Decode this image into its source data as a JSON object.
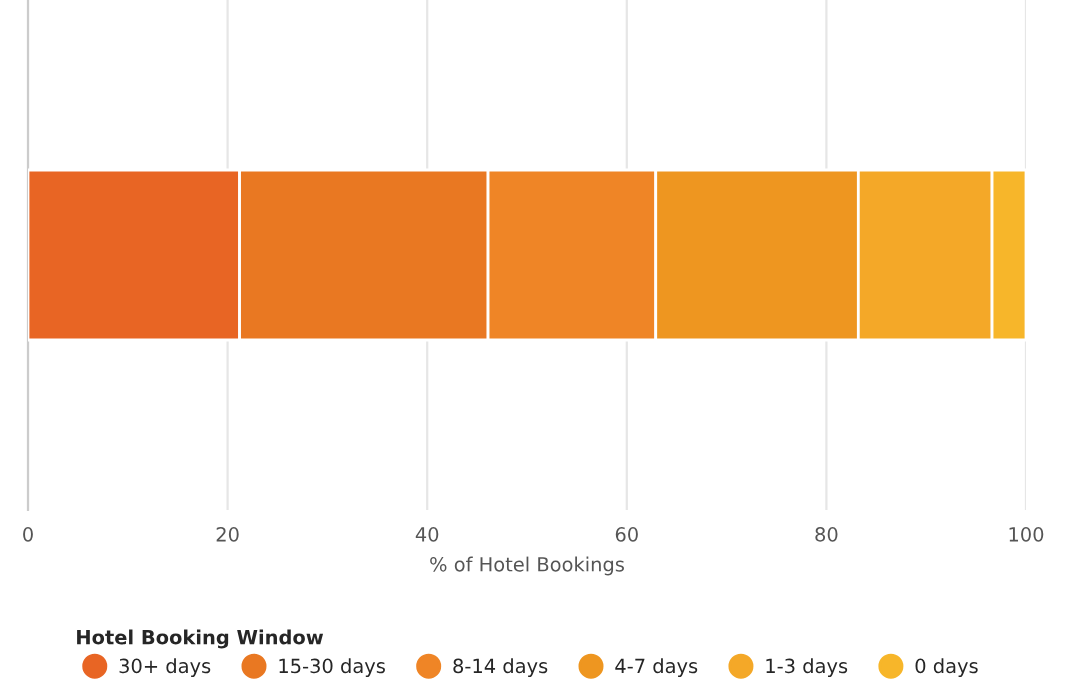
{
  "chart_data": {
    "type": "bar",
    "orientation": "horizontal",
    "stacked": true,
    "xlabel": "% of Hotel Bookings",
    "legend_title": "Hotel Booking Window",
    "legend": "bottom",
    "categories": [
      null
    ],
    "xlim": [
      0,
      100
    ],
    "xticks": [
      0,
      20,
      40,
      60,
      80,
      100
    ],
    "grid": "x",
    "series": [
      {
        "name": "30+ days",
        "color": "#e86524",
        "values": [
          21.2
        ]
      },
      {
        "name": "15-30 days",
        "color": "#e97822",
        "values": [
          24.9
        ]
      },
      {
        "name": "8-14 days",
        "color": "#ef8526",
        "values": [
          16.8
        ]
      },
      {
        "name": "4-7 days",
        "color": "#ee9620",
        "values": [
          20.3
        ]
      },
      {
        "name": "1-3 days",
        "color": "#f4a828",
        "values": [
          13.4
        ]
      },
      {
        "name": "0 days",
        "color": "#f7b62a",
        "values": [
          3.4
        ]
      }
    ]
  }
}
